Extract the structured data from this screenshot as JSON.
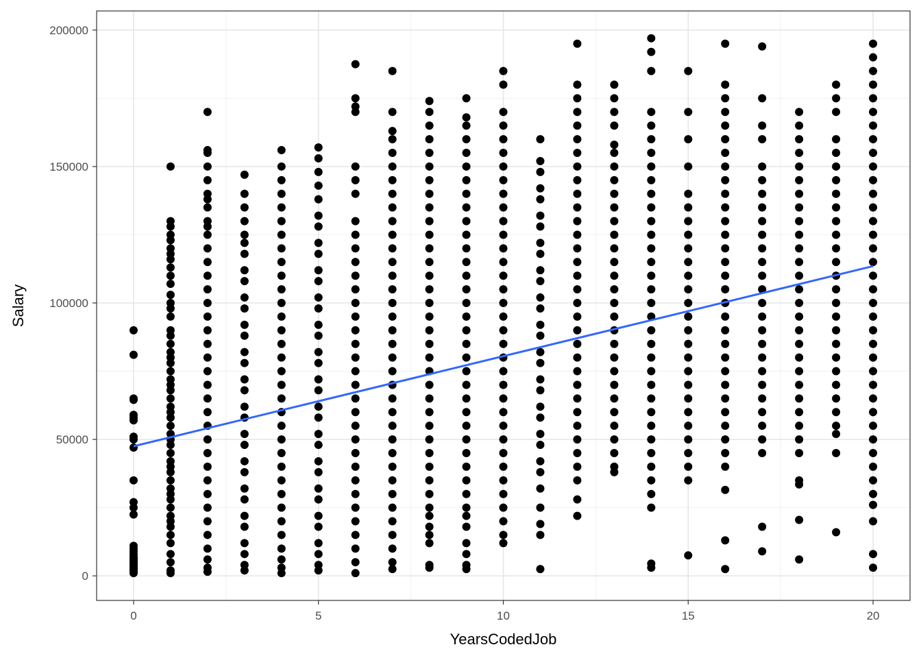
{
  "chart_data": {
    "type": "scatter",
    "title": "",
    "xlabel": "YearsCodedJob",
    "ylabel": "Salary",
    "xlim": [
      -1,
      21
    ],
    "ylim": [
      -9000,
      207000
    ],
    "x_ticks": [
      0,
      5,
      10,
      15,
      20
    ],
    "x_tick_labels": [
      "0",
      "5",
      "10",
      "15",
      "20"
    ],
    "y_ticks": [
      0,
      50000,
      100000,
      150000,
      200000
    ],
    "y_tick_labels": [
      "0",
      "50000",
      "100000",
      "150000",
      "200000"
    ],
    "grid": true,
    "legend": "none",
    "point_color": "#000000",
    "series": [
      {
        "type": "points",
        "points_by_x": [
          {
            "x": 0,
            "y": [
              1000,
              1500,
              2000,
              2500,
              3000,
              3500,
              4000,
              4500,
              5000,
              5500,
              6000,
              6500,
              7000,
              8000,
              9000,
              10000,
              11000,
              22500,
              25000,
              27000,
              35000,
              47000,
              50000,
              51000,
              57000,
              58000,
              59000,
              64500,
              65000,
              81000,
              90000
            ]
          },
          {
            "x": 1,
            "y": [
              1000,
              2000,
              5000,
              8000,
              12000,
              15000,
              18000,
              20000,
              22000,
              25000,
              28000,
              30000,
              32000,
              35000,
              38000,
              40000,
              42000,
              45000,
              48000,
              50000,
              52000,
              55000,
              58000,
              60000,
              62000,
              65000,
              68000,
              70000,
              72000,
              75000,
              78000,
              80000,
              82000,
              85000,
              88000,
              90000,
              95000,
              98000,
              100000,
              103000,
              107000,
              110000,
              113000,
              116000,
              118000,
              120000,
              123000,
              125000,
              128000,
              130000,
              150000
            ]
          },
          {
            "x": 2,
            "y": [
              1500,
              3000,
              6000,
              10000,
              15000,
              20000,
              25000,
              30000,
              35000,
              40000,
              45000,
              50000,
              55000,
              60000,
              65000,
              70000,
              75000,
              80000,
              85000,
              90000,
              95000,
              100000,
              105000,
              110000,
              115000,
              120000,
              125000,
              128000,
              130000,
              135000,
              138000,
              140000,
              145000,
              150000,
              155000,
              156000,
              170000
            ]
          },
          {
            "x": 3,
            "y": [
              2000,
              4000,
              8000,
              12000,
              18000,
              22000,
              28000,
              32000,
              38000,
              42000,
              48000,
              52000,
              58000,
              62000,
              68000,
              72000,
              78000,
              82000,
              88000,
              92000,
              98000,
              102000,
              108000,
              112000,
              118000,
              122000,
              125000,
              130000,
              135000,
              140000,
              147000
            ]
          },
          {
            "x": 4,
            "y": [
              1000,
              3000,
              6000,
              10000,
              15000,
              20000,
              25000,
              30000,
              35000,
              40000,
              45000,
              50000,
              55000,
              60000,
              65000,
              70000,
              75000,
              80000,
              85000,
              90000,
              95000,
              100000,
              105000,
              110000,
              115000,
              120000,
              125000,
              130000,
              135000,
              140000,
              145000,
              150000,
              156000
            ]
          },
          {
            "x": 5,
            "y": [
              2000,
              4000,
              8000,
              12000,
              18000,
              22000,
              28000,
              32000,
              38000,
              42000,
              48000,
              52000,
              58000,
              62000,
              68000,
              72000,
              78000,
              82000,
              88000,
              92000,
              98000,
              102000,
              108000,
              112000,
              118000,
              122000,
              128000,
              132000,
              138000,
              143000,
              148000,
              153000,
              157000
            ]
          },
          {
            "x": 6,
            "y": [
              1000,
              5000,
              10000,
              15000,
              20000,
              25000,
              30000,
              35000,
              40000,
              45000,
              50000,
              55000,
              60000,
              65000,
              70000,
              75000,
              80000,
              85000,
              90000,
              95000,
              100000,
              105000,
              110000,
              115000,
              120000,
              125000,
              130000,
              140000,
              145000,
              150000,
              170000,
              172000,
              175000,
              187500
            ]
          },
          {
            "x": 7,
            "y": [
              2500,
              5000,
              10000,
              15000,
              20000,
              25000,
              30000,
              35000,
              40000,
              45000,
              50000,
              55000,
              60000,
              65000,
              70000,
              75000,
              80000,
              85000,
              90000,
              95000,
              100000,
              105000,
              110000,
              115000,
              120000,
              125000,
              130000,
              135000,
              140000,
              145000,
              150000,
              155000,
              160000,
              163000,
              170000,
              185000
            ]
          },
          {
            "x": 8,
            "y": [
              3000,
              4000,
              12000,
              15000,
              18000,
              22000,
              25000,
              30000,
              35000,
              40000,
              45000,
              50000,
              55000,
              60000,
              65000,
              70000,
              75000,
              80000,
              85000,
              90000,
              95000,
              100000,
              105000,
              110000,
              115000,
              120000,
              125000,
              130000,
              135000,
              140000,
              145000,
              150000,
              155000,
              160000,
              165000,
              170000,
              174000
            ]
          },
          {
            "x": 9,
            "y": [
              2500,
              4000,
              8000,
              12000,
              18000,
              22000,
              25000,
              30000,
              35000,
              40000,
              45000,
              50000,
              55000,
              60000,
              65000,
              70000,
              75000,
              80000,
              85000,
              90000,
              95000,
              100000,
              105000,
              110000,
              115000,
              120000,
              125000,
              130000,
              135000,
              140000,
              145000,
              150000,
              155000,
              160000,
              165000,
              168000,
              175000
            ]
          },
          {
            "x": 10,
            "y": [
              12000,
              15000,
              20000,
              25000,
              30000,
              35000,
              40000,
              45000,
              50000,
              55000,
              60000,
              65000,
              70000,
              75000,
              80000,
              85000,
              90000,
              95000,
              100000,
              105000,
              110000,
              115000,
              120000,
              125000,
              130000,
              135000,
              140000,
              145000,
              150000,
              155000,
              160000,
              165000,
              170000,
              180000,
              185000
            ]
          },
          {
            "x": 11,
            "y": [
              2500,
              15000,
              19000,
              25000,
              32000,
              38000,
              42000,
              48000,
              52000,
              58000,
              62000,
              68000,
              72000,
              78000,
              82000,
              88000,
              92000,
              98000,
              102000,
              108000,
              112000,
              118000,
              122000,
              128000,
              132000,
              138000,
              142000,
              148000,
              152000,
              160000
            ]
          },
          {
            "x": 12,
            "y": [
              22000,
              28000,
              35000,
              40000,
              45000,
              50000,
              55000,
              60000,
              65000,
              70000,
              75000,
              80000,
              85000,
              90000,
              95000,
              100000,
              105000,
              110000,
              115000,
              120000,
              125000,
              130000,
              135000,
              140000,
              145000,
              150000,
              155000,
              160000,
              165000,
              170000,
              175000,
              180000,
              195000
            ]
          },
          {
            "x": 13,
            "y": [
              38000,
              40000,
              45000,
              50000,
              55000,
              60000,
              65000,
              70000,
              75000,
              80000,
              85000,
              90000,
              95000,
              100000,
              105000,
              110000,
              115000,
              120000,
              125000,
              130000,
              135000,
              140000,
              145000,
              150000,
              155000,
              158000,
              165000,
              170000,
              175000,
              180000
            ]
          },
          {
            "x": 14,
            "y": [
              3000,
              4500,
              25000,
              30000,
              35000,
              40000,
              45000,
              50000,
              55000,
              60000,
              65000,
              70000,
              75000,
              80000,
              85000,
              90000,
              95000,
              100000,
              105000,
              110000,
              115000,
              120000,
              125000,
              130000,
              135000,
              140000,
              145000,
              150000,
              155000,
              160000,
              165000,
              170000,
              185000,
              192000,
              197000
            ]
          },
          {
            "x": 15,
            "y": [
              7500,
              35000,
              40000,
              45000,
              50000,
              55000,
              60000,
              65000,
              70000,
              75000,
              80000,
              85000,
              90000,
              95000,
              100000,
              105000,
              110000,
              115000,
              120000,
              125000,
              130000,
              135000,
              140000,
              150000,
              160000,
              170000,
              185000
            ]
          },
          {
            "x": 16,
            "y": [
              2500,
              13000,
              31500,
              40000,
              45000,
              50000,
              55000,
              60000,
              65000,
              70000,
              75000,
              80000,
              85000,
              90000,
              95000,
              100000,
              105000,
              110000,
              115000,
              120000,
              125000,
              130000,
              135000,
              140000,
              145000,
              150000,
              155000,
              160000,
              165000,
              170000,
              175000,
              180000,
              195000
            ]
          },
          {
            "x": 17,
            "y": [
              9000,
              18000,
              45000,
              50000,
              55000,
              60000,
              65000,
              70000,
              75000,
              80000,
              85000,
              90000,
              95000,
              100000,
              105000,
              110000,
              115000,
              120000,
              125000,
              130000,
              135000,
              140000,
              145000,
              150000,
              160000,
              165000,
              175000,
              194000
            ]
          },
          {
            "x": 18,
            "y": [
              6000,
              20500,
              33500,
              35000,
              45000,
              50000,
              55000,
              60000,
              65000,
              70000,
              75000,
              80000,
              85000,
              90000,
              95000,
              100000,
              105000,
              110000,
              115000,
              120000,
              125000,
              130000,
              135000,
              140000,
              145000,
              150000,
              155000,
              160000,
              165000,
              170000
            ]
          },
          {
            "x": 19,
            "y": [
              16000,
              45000,
              52000,
              55000,
              60000,
              65000,
              70000,
              75000,
              80000,
              85000,
              90000,
              95000,
              100000,
              105000,
              110000,
              115000,
              120000,
              125000,
              130000,
              135000,
              140000,
              145000,
              150000,
              155000,
              160000,
              170000,
              175000,
              180000
            ]
          },
          {
            "x": 20,
            "y": [
              3000,
              8000,
              20000,
              26000,
              30000,
              35000,
              40000,
              45000,
              50000,
              55000,
              60000,
              65000,
              70000,
              75000,
              80000,
              85000,
              90000,
              95000,
              100000,
              105000,
              110000,
              115000,
              120000,
              125000,
              130000,
              135000,
              140000,
              145000,
              150000,
              155000,
              160000,
              165000,
              170000,
              175000,
              180000,
              185000,
              190000,
              195000
            ]
          }
        ]
      },
      {
        "type": "line",
        "color": "#3366FF",
        "x": [
          0,
          20
        ],
        "y": [
          47500,
          113500
        ]
      }
    ]
  }
}
